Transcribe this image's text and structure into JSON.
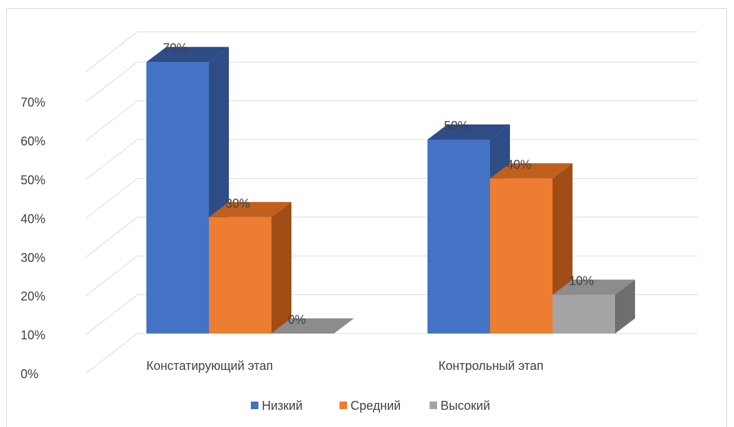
{
  "chart_data": {
    "type": "bar",
    "categories": [
      "Констатирующий этап",
      "Контрольный этап"
    ],
    "series": [
      {
        "name": "Низкий",
        "values": [
          70,
          50
        ],
        "labels": [
          "70%",
          "50%"
        ],
        "color": "#4472C4",
        "side_color": "#2E4C86",
        "top_color": "#2E4C86"
      },
      {
        "name": "Средний",
        "values": [
          30,
          40
        ],
        "labels": [
          "30%",
          "40%"
        ],
        "color": "#ED7D31",
        "side_color": "#A04E16",
        "top_color": "#C05F1E"
      },
      {
        "name": "Высокий",
        "values": [
          0,
          10
        ],
        "labels": [
          "0%",
          "10%"
        ],
        "color": "#A5A5A5",
        "side_color": "#6E6E6E",
        "top_color": "#8C8C8C"
      }
    ],
    "ylim": [
      0,
      70
    ],
    "yticks": [
      "0%",
      "10%",
      "20%",
      "30%",
      "40%",
      "50%",
      "60%",
      "70%"
    ],
    "grid": true,
    "legend_position": "bottom",
    "title": "",
    "xlabel": "",
    "ylabel": ""
  }
}
